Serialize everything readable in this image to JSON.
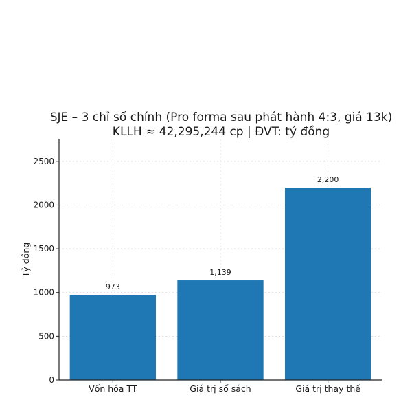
{
  "chart_data": {
    "type": "bar",
    "title_lines": [
      "SJE – 3 chỉ số chính (Pro forma sau phát hành 4:3, giá 13k)",
      "KLLH ≈ 42,295,244 cp | ĐVT: tỷ đồng"
    ],
    "ylabel": "Tỷ đồng",
    "xlabel": "",
    "categories": [
      "Vốn hóa TT",
      "Giá trị sổ sách",
      "Giá trị thay thế"
    ],
    "values": [
      973,
      1139,
      2200
    ],
    "value_labels": [
      "973",
      "1,139",
      "2,200"
    ],
    "yticks": [
      "0",
      "500",
      "1000",
      "1500",
      "2000",
      "2500"
    ],
    "ytick_values": [
      0,
      500,
      1000,
      1500,
      2000,
      2500
    ],
    "ylim": [
      0,
      2750
    ],
    "bar_color": "#1f77b4",
    "grid": true,
    "legend": "none"
  }
}
